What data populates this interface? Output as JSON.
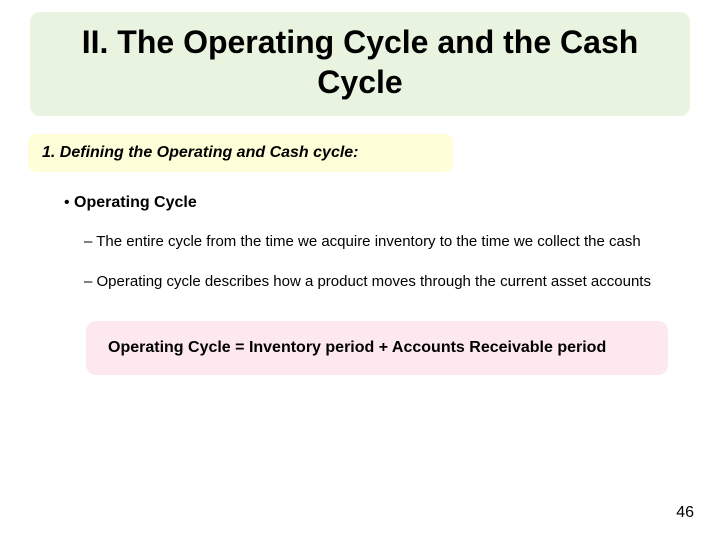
{
  "slide": {
    "title": "II. The Operating Cycle and the Cash Cycle",
    "title_bg": "#e8f4e0",
    "title_color": "#000000",
    "title_fontsize": 32,
    "subheading": "1.  Defining the Operating and Cash cycle:",
    "subheading_bg": "#feffd9",
    "subheading_color": "#000000",
    "subheading_fontsize": 16,
    "bullet_l1": "Operating Cycle",
    "bullets_l2": [
      "The entire cycle from the time we acquire inventory to the time we collect the cash",
      "Operating cycle describes how a product moves through the current asset accounts"
    ],
    "formula_lead": "Operating Cycle",
    "formula_rest": " = Inventory period + Accounts Receivable period",
    "formula_bg": "#fde8f0",
    "formula_fontsize": 16,
    "page_number": "46",
    "background_color": "#ffffff"
  }
}
